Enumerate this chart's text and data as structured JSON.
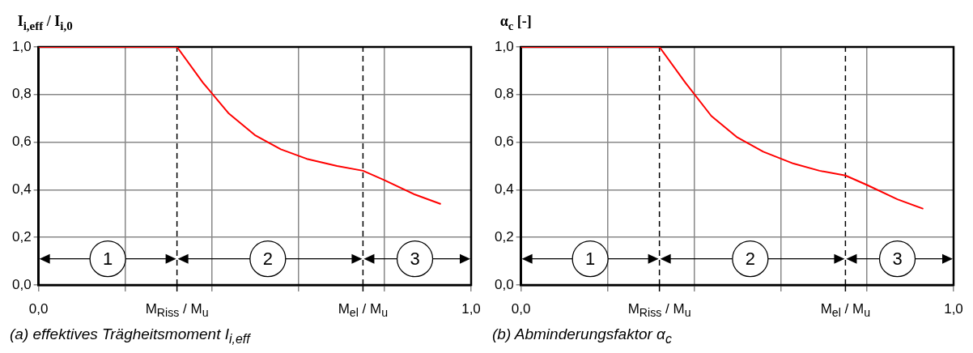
{
  "chart_data": [
    {
      "type": "line",
      "ylabel": "I$_{i,eff}$ / I$_{i,0}$",
      "x": [
        0,
        0.32,
        0.38,
        0.44,
        0.5,
        0.56,
        0.62,
        0.69,
        0.75,
        0.8,
        0.87,
        0.93
      ],
      "series": [
        {
          "color": "#ff0000",
          "values": [
            1,
            1,
            0.85,
            0.72,
            0.63,
            0.57,
            0.53,
            0.5,
            0.48,
            0.44,
            0.38,
            0.34
          ]
        }
      ],
      "xlim": [
        0,
        1
      ],
      "ylim": [
        0,
        1
      ],
      "xticks": [
        {
          "value": 0,
          "label": "0,0"
        },
        {
          "value": 0.2,
          "label": null
        },
        {
          "value": 0.4,
          "label": null
        },
        {
          "value": 0.6,
          "label": null
        },
        {
          "value": 0.8,
          "label": null
        },
        {
          "value": 1,
          "label": "1,0"
        }
      ],
      "yticks": [
        {
          "value": 0,
          "label": "0,0"
        },
        {
          "value": 0.2,
          "label": "0,2"
        },
        {
          "value": 0.4,
          "label": "0,4"
        },
        {
          "value": 0.6,
          "label": "0,6"
        },
        {
          "value": 0.8,
          "label": "0,8"
        },
        {
          "value": 1,
          "label": "1,0"
        }
      ],
      "grid": true,
      "legend": false,
      "marker": "none",
      "ref_lines": [
        {
          "axis": "x",
          "value": 0.32,
          "label": "M$_{Riss}$ / M$_{u}$",
          "color": "#000000",
          "line_style": "dashed"
        },
        {
          "axis": "x",
          "value": 0.75,
          "label": "M$_{el}$ / M$_{u}$",
          "color": "#000000",
          "line_style": "dashed"
        }
      ],
      "annotations": [
        {
          "text": "1",
          "x": 0.16,
          "y": 0.11
        },
        {
          "text": "2",
          "x": 0.53,
          "y": 0.11
        },
        {
          "text": "3",
          "x": 0.87,
          "y": 0.11
        },
        "(a) effektives Trägheitsmoment I$_{i,eff}$"
      ]
    },
    {
      "type": "line",
      "ylabel": "α$_{c}$ [-]",
      "x": [
        0,
        0.32,
        0.38,
        0.44,
        0.5,
        0.56,
        0.63,
        0.69,
        0.75,
        0.8,
        0.87,
        0.93
      ],
      "series": [
        {
          "color": "#ff0000",
          "values": [
            1,
            1,
            0.85,
            0.71,
            0.62,
            0.56,
            0.51,
            0.48,
            0.46,
            0.42,
            0.36,
            0.32
          ]
        }
      ],
      "xlim": [
        0,
        1
      ],
      "ylim": [
        0,
        1
      ],
      "xticks": [
        {
          "value": 0,
          "label": "0,0"
        },
        {
          "value": 0.2,
          "label": null
        },
        {
          "value": 0.4,
          "label": null
        },
        {
          "value": 0.6,
          "label": null
        },
        {
          "value": 0.8,
          "label": null
        },
        {
          "value": 1,
          "label": "1,0"
        }
      ],
      "yticks": [
        {
          "value": 0,
          "label": "0,0"
        },
        {
          "value": 0.2,
          "label": "0,2"
        },
        {
          "value": 0.4,
          "label": "0,4"
        },
        {
          "value": 0.6,
          "label": "0,6"
        },
        {
          "value": 0.8,
          "label": "0,8"
        },
        {
          "value": 1,
          "label": "1,0"
        }
      ],
      "grid": true,
      "legend": false,
      "marker": "none",
      "ref_lines": [
        {
          "axis": "x",
          "value": 0.32,
          "label": "M$_{Riss}$ / M$_{u}$",
          "color": "#000000",
          "line_style": "dashed"
        },
        {
          "axis": "x",
          "value": 0.75,
          "label": "M$_{el}$ / M$_{u}$",
          "color": "#000000",
          "line_style": "dashed"
        }
      ],
      "annotations": [
        {
          "text": "1",
          "x": 0.16,
          "y": 0.11
        },
        {
          "text": "2",
          "x": 0.53,
          "y": 0.11
        },
        {
          "text": "3",
          "x": 0.87,
          "y": 0.11
        },
        "(b) Abminderungsfaktor α$_{c}$"
      ]
    }
  ]
}
